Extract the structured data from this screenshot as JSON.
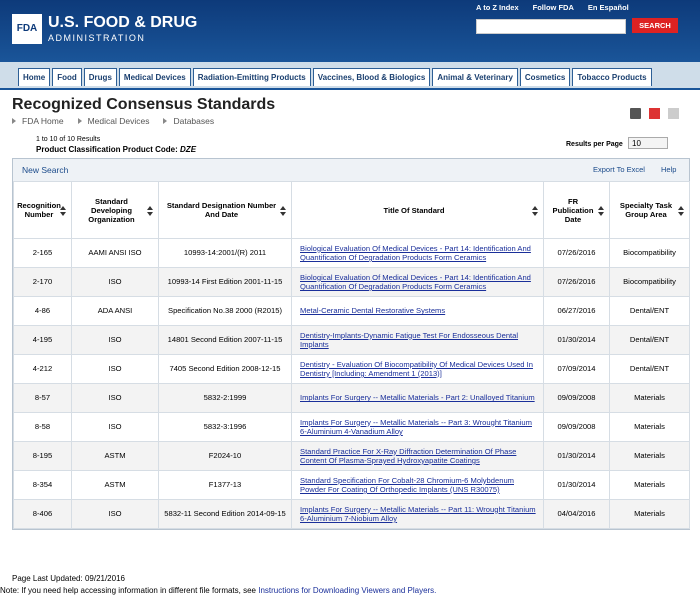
{
  "header": {
    "logo": "FDA",
    "agency_line1": "U.S. FOOD & DRUG",
    "agency_line2": "ADMINISTRATION",
    "links": [
      "A to Z Index",
      "Follow FDA",
      "En Español"
    ],
    "search_button": "SEARCH"
  },
  "nav": [
    "Home",
    "Food",
    "Drugs",
    "Medical Devices",
    "Radiation-Emitting Products",
    "Vaccines, Blood & Biologics",
    "Animal & Veterinary",
    "Cosmetics",
    "Tobacco Products"
  ],
  "page": {
    "title": "Recognized Consensus Standards",
    "breadcrumb": [
      "FDA Home",
      "Medical Devices",
      "Databases"
    ],
    "results_count": "1 to 10 of 10 Results",
    "filter_label": "Product Classification Product Code:",
    "filter_value": "DZE",
    "results_per_page_label": "Results per Page",
    "results_per_page": "10"
  },
  "table": {
    "toolbar": {
      "new_search": "New Search",
      "export": "Export To Excel",
      "help": "Help"
    },
    "columns": [
      "Recognition Number",
      "Standard Developing Organization",
      "Standard Designation Number And Date",
      "Title Of Standard",
      "FR Publication Date",
      "Specialty Task Group Area"
    ],
    "rows": [
      [
        "2-165",
        "AAMI ANSI ISO",
        "10993-14:2001/(R) 2011",
        "Biological Evaluation Of Medical Devices - Part 14: Identification And Quantification Of Degradation Products Form Ceramics",
        "07/26/2016",
        "Biocompatibility"
      ],
      [
        "2-170",
        "ISO",
        "10993-14 First Edition 2001-11-15",
        "Biological Evaluation Of Medical Devices - Part 14: Identification And Quantification Of Degradation Products Form Ceramics",
        "07/26/2016",
        "Biocompatibility"
      ],
      [
        "4-86",
        "ADA ANSI",
        "Specification No.38 2000 (R2015)",
        "Metal-Ceramic Dental Restorative Systems",
        "06/27/2016",
        "Dental/ENT"
      ],
      [
        "4-195",
        "ISO",
        "14801 Second Edition 2007-11-15",
        "Dentistry-Implants-Dynamic Fatigue Test For Endosseous Dental Implants",
        "01/30/2014",
        "Dental/ENT"
      ],
      [
        "4-212",
        "ISO",
        "7405 Second Edition 2008-12-15",
        "Dentistry - Evaluation Of Biocompatibility Of Medical Devices Used In Dentistry [Including: Amendment 1 (2013)]",
        "07/09/2014",
        "Dental/ENT"
      ],
      [
        "8-57",
        "ISO",
        "5832-2:1999",
        "Implants For Surgery -- Metallic Materials - Part 2: Unalloyed Titanium",
        "09/09/2008",
        "Materials"
      ],
      [
        "8-58",
        "ISO",
        "5832-3:1996",
        "Implants For Surgery -- Metallic Materials -- Part 3: Wrought Titanium 6-Aluminium 4-Vanadium Alloy",
        "09/09/2008",
        "Materials"
      ],
      [
        "8-195",
        "ASTM",
        "F2024-10",
        "Standard Practice For X-Ray Diffraction Determination Of Phase Content Of Plasma-Sprayed Hydroxyapatite Coatings",
        "01/30/2014",
        "Materials"
      ],
      [
        "8-354",
        "ASTM",
        "F1377-13",
        "Standard Specification For Cobalt-28 Chromium-6 Molybdenum Powder For Coating Of Orthopedic Implants (UNS R30075)",
        "01/30/2014",
        "Materials"
      ],
      [
        "8-406",
        "ISO",
        "5832-11 Second Edition 2014-09-15",
        "Implants For Surgery -- Metallic Materials -- Part 11: Wrought Titanium 6-Aluminium 7-Niobium Alloy",
        "04/04/2016",
        "Materials"
      ]
    ]
  },
  "footer": {
    "last_updated": "Page Last Updated: 09/21/2016",
    "note": "Note: If you need help accessing information in different file formats, see",
    "note_link": "Instructions for Downloading Viewers and Players."
  }
}
